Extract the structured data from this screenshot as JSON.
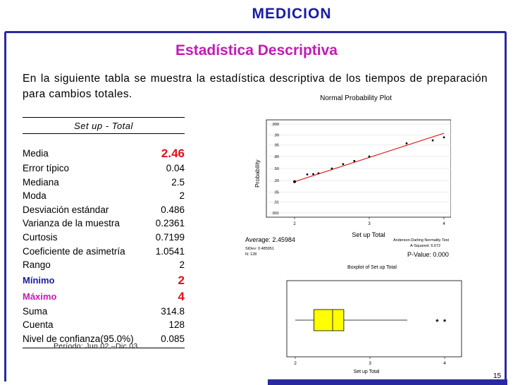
{
  "header": {
    "title": "MEDICION",
    "subtitle": "Estadística Descriptiva"
  },
  "intro": "En la siguiente tabla se muestra la estadística descriptiva de los tiempos de preparación para cambios totales.",
  "table": {
    "heading": "Set up - Total",
    "rows": [
      {
        "label": "Media",
        "value": "2.46"
      },
      {
        "label": "Error típico",
        "value": "0.04"
      },
      {
        "label": "Mediana",
        "value": "2.5"
      },
      {
        "label": "Moda",
        "value": "2"
      },
      {
        "label": "Desviación estándar",
        "value": "0.486"
      },
      {
        "label": "Varianza de la muestra",
        "value": "0.2361"
      },
      {
        "label": "Curtosis",
        "value": "0.7199"
      },
      {
        "label": "Coeficiente de asimetría",
        "value": "1.0541"
      },
      {
        "label": "Rango",
        "value": "2"
      },
      {
        "label": "Mínimo",
        "value": "2"
      },
      {
        "label": "Máximo",
        "value": "4"
      },
      {
        "label": "Suma",
        "value": "314.8"
      },
      {
        "label": "Cuenta",
        "value": "128"
      },
      {
        "label": "Nivel de confianza(95.0%)",
        "value": "0.085"
      }
    ]
  },
  "period": "Período: Jun 02 –Dic 03",
  "page_number": "15",
  "colors": {
    "title": "#1a1aa8",
    "subtitle": "#c41ab4",
    "highlight": "#e0101c",
    "frame": "#2a2aa0",
    "box_fill": "#ffff00",
    "fit_line": "#e02020"
  },
  "chart_data": [
    {
      "type": "scatter",
      "title": "Normal Probability Plot",
      "xlabel": "Set up Total",
      "ylabel": "Probability",
      "x_ticks": [
        "2",
        "3",
        "4"
      ],
      "y_ticks": [
        ".999",
        ".99",
        ".95",
        ".80",
        ".50",
        ".20",
        ".05",
        ".01",
        ".001"
      ],
      "xlim": [
        2,
        4
      ],
      "points": [
        {
          "x": 2.0,
          "p": 0.18
        },
        {
          "x": 2.17,
          "p": 0.34
        },
        {
          "x": 2.25,
          "p": 0.35
        },
        {
          "x": 2.32,
          "p": 0.37
        },
        {
          "x": 2.5,
          "p": 0.5
        },
        {
          "x": 2.65,
          "p": 0.62
        },
        {
          "x": 2.8,
          "p": 0.7
        },
        {
          "x": 3.0,
          "p": 0.8
        },
        {
          "x": 3.5,
          "p": 0.96
        },
        {
          "x": 3.85,
          "p": 0.975
        },
        {
          "x": 4.0,
          "p": 0.985
        }
      ],
      "fit_line": [
        {
          "x": 2.0,
          "p": 0.18
        },
        {
          "x": 4.0,
          "p": 0.993
        }
      ],
      "stats_left": {
        "average": "Average: 2.45984",
        "stdev": "StDev: 0.485951",
        "n": "N: 128"
      },
      "stats_right": {
        "test": "Anderson-Darling Normality Test",
        "asq": "A-Squared: 6.672",
        "pvalue": "P-Value:  0.000"
      }
    },
    {
      "type": "box",
      "title": "Boxplot of Set up Total",
      "xlabel": "Set up Total",
      "x_ticks": [
        "2",
        "3",
        "4"
      ],
      "xlim": [
        2,
        4
      ],
      "whisker_low": 2.0,
      "q1": 2.25,
      "median": 2.5,
      "q3": 2.65,
      "whisker_high": 3.5,
      "outliers": [
        3.9,
        4.0
      ],
      "outlier_marker": "*"
    }
  ]
}
